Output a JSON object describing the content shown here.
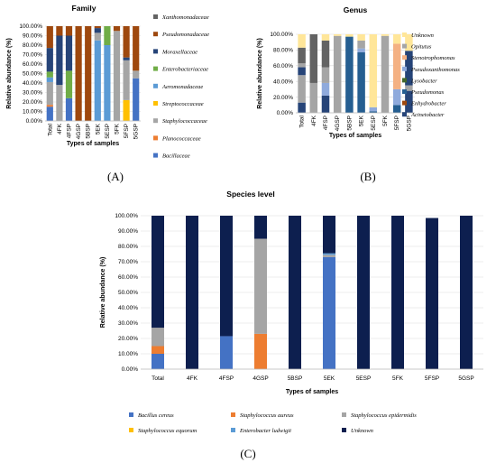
{
  "panel_labels": {
    "a": "(A)",
    "b": "(B)",
    "c": "(C)"
  },
  "chart_data": [
    {
      "id": "family",
      "type": "bar",
      "stacked": true,
      "title": "Family",
      "xlabel": "Types of samples",
      "ylabel": "Relative abundance (%)",
      "ylim": [
        0,
        100
      ],
      "yticks": [
        "0.00%",
        "10.00%",
        "20.00%",
        "30.00%",
        "40.00%",
        "50.00%",
        "60.00%",
        "70.00%",
        "80.00%",
        "90.00%",
        "100.00%"
      ],
      "categories": [
        "Total",
        "4FK",
        "4FSP",
        "4GSP",
        "5BSP",
        "5EK",
        "5ESP",
        "5FK",
        "5FSP",
        "5GSP"
      ],
      "legend_position": "right",
      "series": [
        {
          "name": "Bacillaceae",
          "color": "#4472c4",
          "values": [
            15,
            0,
            24,
            0,
            0,
            0,
            0,
            0,
            0,
            45
          ]
        },
        {
          "name": "Planococcaceae",
          "color": "#ed7d31",
          "values": [
            2,
            0,
            0,
            0,
            0,
            0,
            0,
            0,
            0,
            0
          ]
        },
        {
          "name": "Staphylococcaceae",
          "color": "#a5a5a5",
          "values": [
            24,
            0,
            0,
            0,
            0,
            0,
            0,
            0,
            0,
            0
          ]
        },
        {
          "name": "Streptococcaceae",
          "color": "#ffc000",
          "values": [
            0,
            0,
            0,
            0,
            0,
            0,
            0,
            0,
            22,
            0
          ]
        },
        {
          "name": "Aeromonadaceae",
          "color": "#5b9bd5",
          "values": [
            5,
            0,
            0,
            0,
            0,
            85,
            80,
            0,
            0,
            0
          ]
        },
        {
          "name": "Enterobacteriaceae",
          "color": "#70ad47",
          "values": [
            6,
            0,
            29,
            0,
            0,
            0,
            20,
            0,
            0,
            0
          ]
        },
        {
          "name": "Staphylococcaceae",
          "color": "#a5a5a5",
          "values": [
            0,
            38,
            0,
            0,
            0,
            8,
            0,
            95,
            42,
            8
          ]
        },
        {
          "name": "Moraxellaceae",
          "color": "#264478",
          "values": [
            25,
            52,
            37,
            0,
            0,
            5,
            0,
            0,
            3,
            0
          ]
        },
        {
          "name": "Pseudomonadaceae",
          "color": "#9e480e",
          "values": [
            23,
            10,
            10,
            100,
            100,
            2,
            0,
            5,
            33,
            47
          ]
        },
        {
          "name": "Xanthomonadaceae",
          "color": "#636363",
          "values": [
            0,
            0,
            0,
            0,
            0,
            0,
            0,
            0,
            0,
            0
          ]
        }
      ],
      "legend": [
        {
          "name": "Xanthomonadaceae",
          "color": "#636363"
        },
        {
          "name": "Pseudomonadaceae",
          "color": "#9e480e"
        },
        {
          "name": "Moraxellaceae",
          "color": "#264478"
        },
        {
          "name": "Enterobacteriaceae",
          "color": "#70ad47"
        },
        {
          "name": "Aeromonadaceae",
          "color": "#5b9bd5"
        },
        {
          "name": "Streptococcaceae",
          "color": "#ffc000"
        },
        {
          "name": "Staphylococcaceae",
          "color": "#a5a5a5"
        },
        {
          "name": "Planococcaceae",
          "color": "#ed7d31"
        },
        {
          "name": "Bacillaceae",
          "color": "#4472c4"
        }
      ]
    },
    {
      "id": "genus",
      "type": "bar",
      "stacked": true,
      "title": "Genus",
      "xlabel": "Types of samples",
      "ylabel": "Relative abundance (%)",
      "ylim": [
        0,
        100
      ],
      "yticks": [
        "0.00%",
        "20.00%",
        "40.00%",
        "60.00%",
        "80.00%",
        "100.00%"
      ],
      "categories": [
        "Total",
        "4FK",
        "4FSP",
        "4GSP",
        "5BSP",
        "5EK",
        "5ESP",
        "5FK",
        "5FSP",
        "5GSP"
      ],
      "legend_position": "right",
      "series": [
        {
          "name": "Acinetobacter",
          "color": "#264478",
          "values": [
            13,
            0,
            22,
            0,
            0,
            0,
            0,
            0,
            0,
            28
          ]
        },
        {
          "name": "Enhydrobacter",
          "color": "#9e480e",
          "values": [
            0,
            0,
            0,
            0,
            0,
            0,
            0,
            0,
            0,
            0
          ]
        },
        {
          "name": "Pseudomonas",
          "color": "#255e91",
          "values": [
            0,
            0,
            0,
            0,
            97,
            77,
            2,
            0,
            10,
            0
          ]
        },
        {
          "name": "Lysobacter",
          "color": "#43682b",
          "values": [
            0,
            0,
            0,
            0,
            0,
            0,
            0,
            0,
            0,
            0
          ]
        },
        {
          "name": "Pseudoxanthomonas",
          "color": "#8faadc",
          "values": [
            0,
            0,
            16,
            0,
            0,
            5,
            5,
            0,
            20,
            0
          ]
        },
        {
          "name": "Stenotrophomonas",
          "color": "#f4b183",
          "values": [
            0,
            0,
            0,
            0,
            0,
            0,
            0,
            0,
            58,
            0
          ]
        },
        {
          "name": "Opitutus",
          "color": "#a5a5a5",
          "values": [
            0,
            38,
            0,
            98,
            0,
            0,
            0,
            98,
            0,
            7
          ]
        },
        {
          "name": "Acinetobacter",
          "color": "#264478",
          "values": [
            0,
            0,
            0,
            0,
            0,
            0,
            0,
            0,
            0,
            44
          ]
        },
        {
          "name": "Opitutus",
          "color": "#a5a5a5",
          "values": [
            35,
            0,
            20,
            0,
            0,
            10,
            0,
            0,
            0,
            0
          ]
        },
        {
          "name": "Acinetobacter",
          "color": "#264478",
          "values": [
            10,
            0,
            0,
            0,
            0,
            0,
            0,
            0,
            0,
            0
          ]
        },
        {
          "name": "Opitutus",
          "color": "#a5a5a5",
          "values": [
            5,
            0,
            0,
            0,
            0,
            0,
            0,
            0,
            0,
            0
          ]
        },
        {
          "name": "Lysobacter",
          "color": "#636363",
          "values": [
            20,
            62,
            34,
            0,
            0,
            0,
            0,
            0,
            0,
            0
          ]
        },
        {
          "name": "Unknown",
          "color": "#ffe699",
          "values": [
            17,
            0,
            8,
            2,
            3,
            8,
            93,
            2,
            12,
            21
          ]
        }
      ],
      "legend": [
        {
          "name": "Unknown",
          "color": "#ffe699"
        },
        {
          "name": "Opitutus",
          "color": "#a5a5a5"
        },
        {
          "name": "Stenotrophomonas",
          "color": "#f4b183"
        },
        {
          "name": "Pseudoxanthomonas",
          "color": "#8faadc"
        },
        {
          "name": "Lysobacter",
          "color": "#43682b"
        },
        {
          "name": "Pseudomonas",
          "color": "#255e91"
        },
        {
          "name": "Enhydrobacter",
          "color": "#9e480e"
        },
        {
          "name": "Acinetobacter",
          "color": "#264478"
        }
      ]
    },
    {
      "id": "species",
      "type": "bar",
      "stacked": true,
      "title": "Species level",
      "xlabel": "Types of samples",
      "ylabel": "Relative abundance (%)",
      "ylim": [
        0,
        100
      ],
      "yticks": [
        "0.00%",
        "10.00%",
        "20.00%",
        "30.00%",
        "40.00%",
        "50.00%",
        "60.00%",
        "70.00%",
        "80.00%",
        "90.00%",
        "100.00%"
      ],
      "categories": [
        "Total",
        "4FK",
        "4FSP",
        "4GSP",
        "5BSP",
        "5EK",
        "5ESP",
        "5FK",
        "5FSP",
        "5GSP"
      ],
      "legend_position": "bottom",
      "series": [
        {
          "name": "Bacillus cereus",
          "color": "#4472c4",
          "values": [
            10,
            0,
            21.5,
            0,
            0,
            73,
            0,
            0,
            0,
            0
          ]
        },
        {
          "name": "Staphylococcus aureus",
          "color": "#ed7d31",
          "values": [
            5,
            0,
            0,
            23,
            0,
            0,
            0,
            0,
            0,
            0
          ]
        },
        {
          "name": "Staphylococcus epidermidis",
          "color": "#a5a5a5",
          "values": [
            12,
            0,
            0,
            62,
            0,
            1.5,
            0,
            0,
            0,
            0
          ]
        },
        {
          "name": "Staphylococcus equorum",
          "color": "#ffc000",
          "values": [
            0,
            0,
            0,
            0,
            0,
            0,
            0,
            0,
            0,
            0
          ]
        },
        {
          "name": "Enterobacter ludwigii",
          "color": "#5b9bd5",
          "values": [
            0,
            0,
            0,
            0,
            0,
            1,
            0,
            0,
            0,
            0
          ]
        },
        {
          "name": "Unknown",
          "color": "#0d1f4f",
          "values": [
            73,
            100,
            78.5,
            15,
            100,
            24.5,
            100,
            100,
            98.5,
            100
          ]
        }
      ],
      "legend": [
        {
          "name": "Bacillus cereus",
          "color": "#4472c4"
        },
        {
          "name": "Staphylococcus aureus",
          "color": "#ed7d31"
        },
        {
          "name": "Staphylococcus epidermidis",
          "color": "#a5a5a5"
        },
        {
          "name": "Staphylococcus equorum",
          "color": "#ffc000"
        },
        {
          "name": "Enterobacter ludwigii",
          "color": "#5b9bd5"
        },
        {
          "name": "Unknown",
          "color": "#0d1f4f"
        }
      ]
    }
  ]
}
